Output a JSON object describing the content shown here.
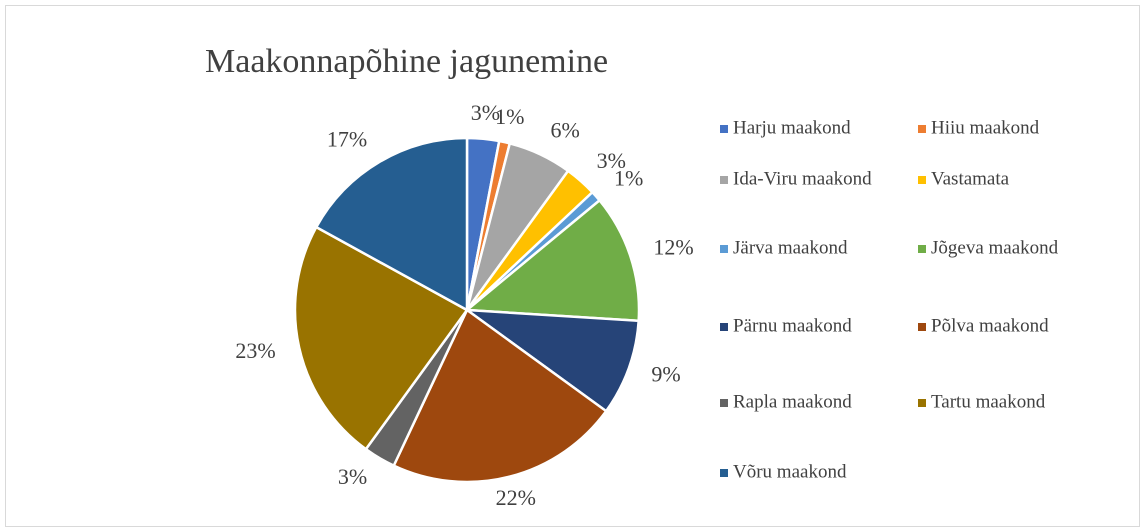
{
  "chart_data": {
    "type": "pie",
    "title": "Maakonnapõhine jagunemine",
    "categories": [
      "Harju maakond",
      "Hiiu maakond",
      "Ida-Viru maakond",
      "Vastamata",
      "Järva maakond",
      "Jõgeva maakond",
      "Pärnu maakond",
      "Põlva maakond",
      "Rapla maakond",
      "Tartu maakond",
      "Võru maakond"
    ],
    "values": [
      3,
      1,
      6,
      3,
      1,
      12,
      9,
      22,
      3,
      23,
      17
    ],
    "value_labels": [
      "3%",
      "1%",
      "6%",
      "3%",
      "1%",
      "12%",
      "9%",
      "22%",
      "3%",
      "23%",
      "17%"
    ],
    "colors": [
      "#4472c4",
      "#ed7d31",
      "#a5a5a5",
      "#ffc000",
      "#5b9bd5",
      "#70ad47",
      "#264478",
      "#9e480e",
      "#636363",
      "#997300",
      "#255e91"
    ],
    "legend": "right"
  }
}
